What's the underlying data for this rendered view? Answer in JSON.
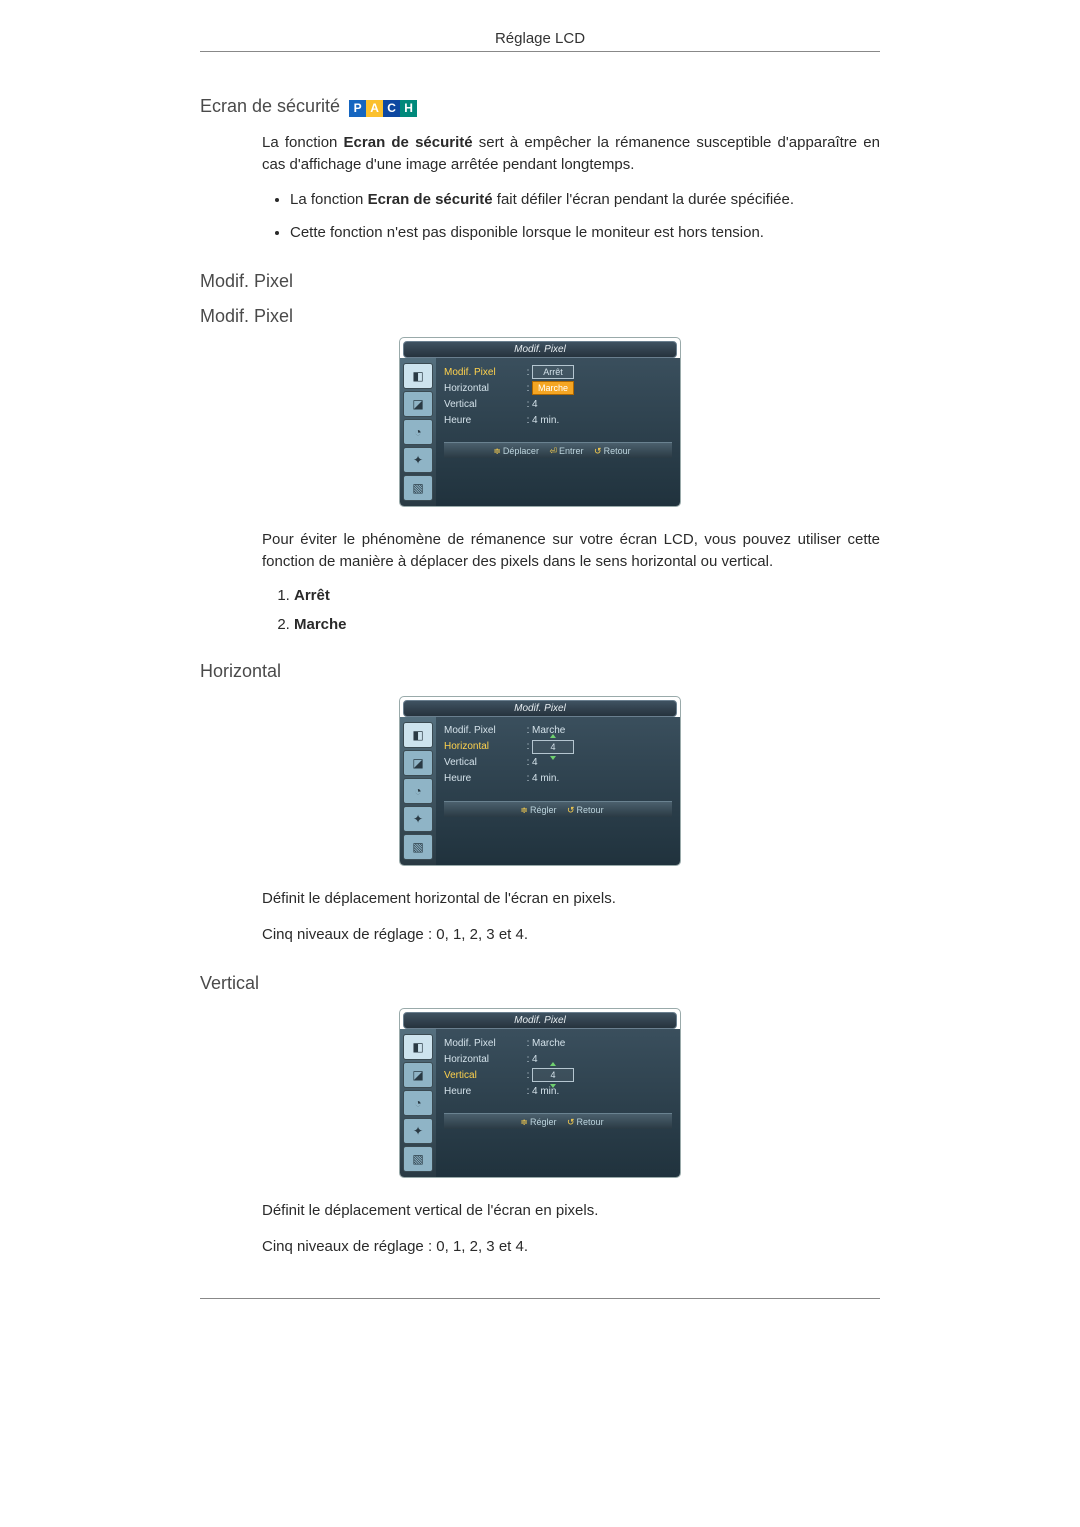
{
  "page": {
    "header": "Réglage LCD"
  },
  "securite": {
    "title": "Ecran de sécurité",
    "intro": "sert à empêcher la rémanence susceptible d'apparaître en cas d'affichage d'une image arrêtée pendant longtemps.",
    "intro_lead": "La fonction ",
    "intro_bold": "Ecran de sécurité ",
    "b1_lead": "La fonction ",
    "b1_bold": "Ecran de sécurité ",
    "b1_rest": "fait défiler l'écran pendant la durée spécifiée.",
    "b2": "Cette fonction n'est pas disponible lorsque le moniteur est hors tension."
  },
  "modif": {
    "h1": "Modif. Pixel",
    "h2": "Modif. Pixel",
    "desc": "Pour éviter le phénomène de rémanence sur votre écran LCD, vous pouvez utiliser cette fonction de manière à déplacer des pixels dans le sens horizontal ou vertical.",
    "opt1": "Arrêt",
    "opt2": "Marche"
  },
  "horiz": {
    "title": "Horizontal",
    "desc": "Définit le déplacement horizontal de l'écran en pixels.",
    "levels": "Cinq niveaux de réglage : 0, 1, 2, 3 et 4."
  },
  "vert": {
    "title": "Vertical",
    "desc": "Définit le déplacement vertical de l'écran en pixels.",
    "levels": "Cinq niveaux de réglage : 0, 1, 2, 3 et 4."
  },
  "osd_common": {
    "title": "Modif. Pixel",
    "labels": {
      "modif": "Modif. Pixel",
      "horiz": "Horizontal",
      "vert": "Vertical",
      "heure": "Heure"
    }
  },
  "osd1": {
    "modif_val1": "Arrêt",
    "modif_val2": "Marche",
    "horiz_val": "4",
    "vert_val": "4",
    "heure_val": "4 min.",
    "foot": {
      "k1": "≑",
      "t1": "Déplacer",
      "k2": "⏎",
      "t2": "Entrer",
      "k3": "↺",
      "t3": "Retour"
    }
  },
  "osd2": {
    "modif_val": "Marche",
    "horiz_val": "4",
    "vert_val": "4",
    "heure_val": "4 min.",
    "foot": {
      "k1": "≑",
      "t1": "Régler",
      "k2": "↺",
      "t2": "Retour"
    }
  },
  "osd3": {
    "modif_val": "Marche",
    "horiz_val": "4",
    "vert_val": "4",
    "heure_val": "4 min.",
    "foot": {
      "k1": "≑",
      "t1": "Régler",
      "k2": "↺",
      "t2": "Retour"
    }
  },
  "badges": {
    "p": "P",
    "a": "A",
    "c": "C",
    "h": "H"
  }
}
